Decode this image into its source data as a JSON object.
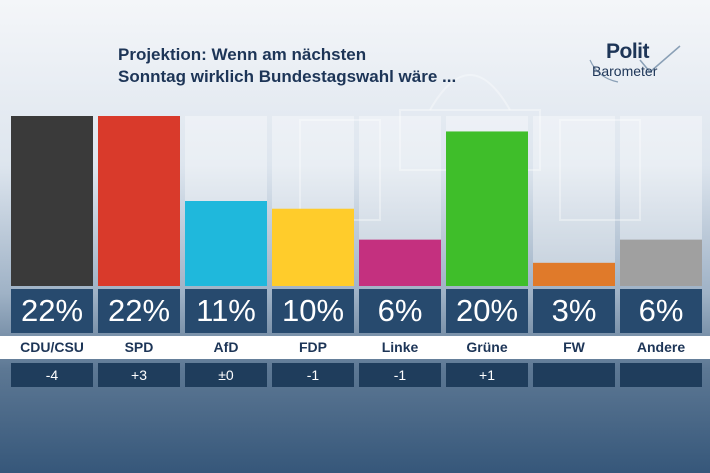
{
  "title_line1": "Projektion: Wenn am nächsten",
  "title_line2": "Sonntag wirklich Bundestagswahl wäre ...",
  "logo": {
    "line1": "Polit",
    "line2": "Barometer"
  },
  "chart_data": {
    "type": "bar",
    "title": "Projektion: Wenn am nächsten Sonntag wirklich Bundestagswahl wäre ...",
    "categories": [
      "CDU/CSU",
      "SPD",
      "AfD",
      "FDP",
      "Linke",
      "Grüne",
      "FW",
      "Andere"
    ],
    "values": [
      22,
      22,
      11,
      10,
      6,
      20,
      3,
      6
    ],
    "value_labels": [
      "22%",
      "22%",
      "11%",
      "10%",
      "6%",
      "20%",
      "3%",
      "6%"
    ],
    "changes": [
      "-4",
      "+3",
      "±0",
      "-1",
      "-1",
      "+1",
      "",
      ""
    ],
    "colors": [
      "#3a3a3a",
      "#d93a2b",
      "#1fb8dc",
      "#ffcc2b",
      "#c4307f",
      "#3fbe2a",
      "#e07a2a",
      "#a0a0a0"
    ],
    "ylim": [
      0,
      22
    ],
    "grid": false
  }
}
